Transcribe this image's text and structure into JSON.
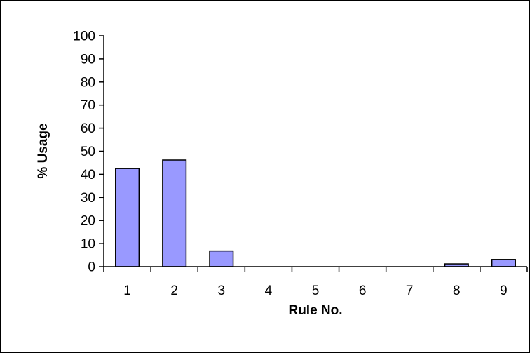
{
  "chart_data": {
    "type": "bar",
    "categories": [
      "1",
      "2",
      "3",
      "4",
      "5",
      "6",
      "7",
      "8",
      "9"
    ],
    "values": [
      42.5,
      46.2,
      6.8,
      0,
      0,
      0,
      0,
      1.2,
      3.1
    ],
    "title": "",
    "xlabel": "Rule No.",
    "ylabel": "% Usage",
    "ylim": [
      0,
      100
    ],
    "yticks": [
      "0",
      "10",
      "20",
      "30",
      "40",
      "50",
      "60",
      "70",
      "80",
      "90",
      "100"
    ],
    "grid": false,
    "legend": "none",
    "bar_color": "#9999ff",
    "bar_edge_color": "#000000"
  }
}
